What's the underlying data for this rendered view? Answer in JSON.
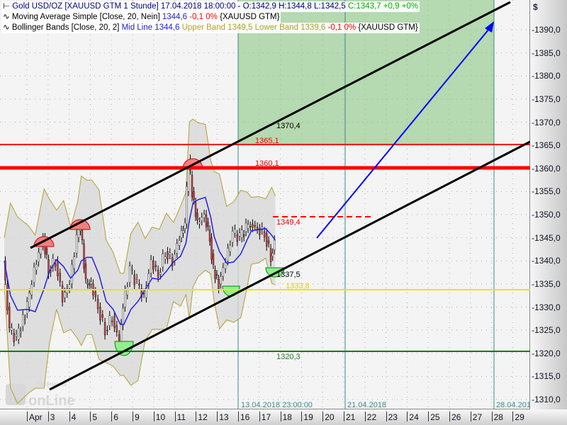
{
  "legend": {
    "main": {
      "name": "Gold USD/OZ [XAUUSD GTM  1 Stunde] 17.04.2018 18:00:00 - O:1342,9 H:1344,8 L:1342,5",
      "close": "C:1343,7 +0,9 +0%"
    },
    "ma": {
      "name": "Moving Average Simple [Close, 20, Nein]",
      "value": "1344,6",
      "change": "-0,1 0%",
      "symbol": "{XAUUSD GTM}"
    },
    "bb": {
      "name": "Bollinger Bands [Close, 20, 2]",
      "mid": "Mid Line 1344,6",
      "upper": "Upper Band 1349,5",
      "lower": "Lower Band 1339,6",
      "change": "-0,1 0%",
      "symbol": "{XAUUSD GTM}"
    }
  },
  "logo": "Tradesignal online",
  "currency": "$",
  "colors": {
    "green_zone": "#b5d9b0",
    "red_level": "#ff0000",
    "yellow_level": "#e8e800",
    "green_level": "#008000",
    "ma": "#2020e0",
    "bb": "#b0a030",
    "arrow": "#0000ff",
    "channel": "#000000"
  },
  "chart_data": {
    "type": "candlestick",
    "ylim": [
      1308,
      1395
    ],
    "yticks": [
      "1390,0",
      "1385,0",
      "1380,0",
      "1375,0",
      "1370,0",
      "1365,0",
      "1360,0",
      "1355,0",
      "1350,0",
      "1345,0",
      "1340,0",
      "1335,0",
      "1330,0",
      "1325,0",
      "1320,0",
      "1315,0",
      "1310,0"
    ],
    "xticks": [
      "Apr",
      "3",
      "4",
      "5",
      "6",
      "9",
      "10",
      "11",
      "12",
      "13",
      "16",
      "17",
      "18",
      "19",
      "20",
      "21",
      "22",
      "23",
      "24",
      "25",
      "26",
      "27",
      "28",
      "29"
    ],
    "date_markers": [
      "13.04.2018 23:00:00",
      "21.04.2018",
      "28.04.201"
    ],
    "close_series": [
      [
        "03-29 00:00",
        1340
      ],
      [
        "03-29 07:00",
        1325
      ],
      [
        "03-29 15:00",
        1323
      ],
      [
        "04-02 03:00",
        1330
      ],
      [
        "04-02 11:00",
        1338
      ],
      [
        "04-02 21:00",
        1345
      ],
      [
        "04-03 03:00",
        1338
      ],
      [
        "04-03 11:00",
        1340
      ],
      [
        "04-03 19:00",
        1332
      ],
      [
        "04-04 03:00",
        1335
      ],
      [
        "04-04 11:00",
        1345
      ],
      [
        "04-04 15:00",
        1348
      ],
      [
        "04-04 21:00",
        1335
      ],
      [
        "04-05 03:00",
        1335
      ],
      [
        "04-05 11:00",
        1330
      ],
      [
        "04-05 19:00",
        1325
      ],
      [
        "04-06 03:00",
        1328
      ],
      [
        "04-06 11:00",
        1322
      ],
      [
        "04-06 15:00",
        1330
      ],
      [
        "04-06 23:00",
        1338
      ],
      [
        "04-09 07:00",
        1335
      ],
      [
        "04-09 15:00",
        1332
      ],
      [
        "04-09 23:00",
        1340
      ],
      [
        "04-10 07:00",
        1337
      ],
      [
        "04-10 15:00",
        1342
      ],
      [
        "04-10 23:00",
        1340
      ],
      [
        "04-11 07:00",
        1345
      ],
      [
        "04-11 13:00",
        1348
      ],
      [
        "04-11 17:00",
        1362
      ],
      [
        "04-11 21:00",
        1355
      ],
      [
        "04-12 03:00",
        1348
      ],
      [
        "04-12 11:00",
        1350
      ],
      [
        "04-12 17:00",
        1345
      ],
      [
        "04-12 21:00",
        1338
      ],
      [
        "04-13 03:00",
        1335
      ],
      [
        "04-13 11:00",
        1340
      ],
      [
        "04-13 19:00",
        1346
      ],
      [
        "04-16 03:00",
        1345
      ],
      [
        "04-16 10:00",
        1347
      ],
      [
        "04-16 15:00",
        1348
      ],
      [
        "04-16 23:00",
        1347
      ],
      [
        "04-17 07:00",
        1346
      ],
      [
        "04-17 14:00",
        1341
      ],
      [
        "04-17 18:00",
        1343.7
      ]
    ],
    "levels": [
      {
        "value": 1365.1,
        "label": "1365,1",
        "color": "red",
        "style": "thin"
      },
      {
        "value": 1360.1,
        "label": "1360,1",
        "color": "red",
        "style": "thick"
      },
      {
        "value": 1349.4,
        "label": "1349,4",
        "color": "red",
        "style": "dashed"
      },
      {
        "value": 1333.8,
        "label": "1333,8",
        "color": "yellow",
        "style": "solid"
      },
      {
        "value": 1320.3,
        "label": "1320,3",
        "color": "green",
        "style": "solid"
      }
    ],
    "annotations": [
      "1370,4",
      "1337,5"
    ]
  }
}
